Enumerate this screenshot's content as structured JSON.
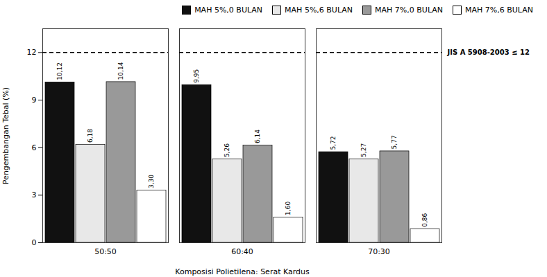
{
  "chart_data": {
    "type": "bar",
    "categories": [
      "50:50",
      "60:40",
      "70:30"
    ],
    "series": [
      {
        "name": "MAH 5%,0 BULAN",
        "color": "#111111",
        "values": [
          10.12,
          9.95,
          5.72
        ],
        "value_labels": [
          "10,12",
          "9,95",
          "5,72"
        ]
      },
      {
        "name": "MAH 5%,6 BULAN",
        "color": "#e8e8e8",
        "values": [
          6.18,
          5.26,
          5.27
        ],
        "value_labels": [
          "6,18",
          "5,26",
          "5,27"
        ]
      },
      {
        "name": "MAH 7%,0 BULAN",
        "color": "#999999",
        "values": [
          10.14,
          6.14,
          5.77
        ],
        "value_labels": [
          "10,14",
          "6,14",
          "5,77"
        ]
      },
      {
        "name": "MAH 7%,6 BULAN",
        "color": "#ffffff",
        "values": [
          3.3,
          1.6,
          0.86
        ],
        "value_labels": [
          "3,30",
          "1,60",
          "0,86"
        ]
      }
    ],
    "xlabel": "Komposisi Polietilena: Serat Kardus",
    "ylabel": "Pengembangan Tebal (%)",
    "ylim": [
      0,
      13.5
    ],
    "yticks": [
      0,
      3,
      6,
      9,
      12
    ],
    "grid": false,
    "legend": "upper right",
    "data_labels": true,
    "annotations": [
      {
        "text": "JIS A 5908-2003 ≤ 12",
        "y": 12,
        "line_style": "dashed"
      }
    ]
  }
}
